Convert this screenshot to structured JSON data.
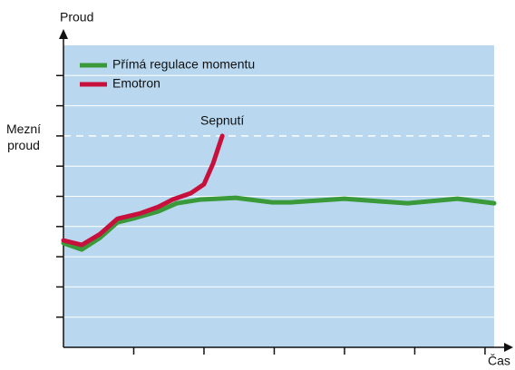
{
  "chart_data": {
    "type": "line",
    "y_label": "Proud",
    "x_label": "Čas",
    "xlim": [
      0,
      6.13
    ],
    "xticks": [
      1,
      2,
      3,
      4,
      5,
      6
    ],
    "ylim": [
      0,
      10
    ],
    "yticks": [
      1,
      2,
      3,
      4,
      5,
      6,
      7,
      8,
      9
    ],
    "grid": true,
    "background": "#b9d8ef",
    "reference_line": {
      "value": 7,
      "label": "Mezní proud",
      "color": "#ffffff"
    },
    "annotation": "Sepnutí",
    "legend": "top-left",
    "series": [
      {
        "name": "Přímá regulace momentu",
        "color": "#3a9a3a",
        "x": [
          0,
          0.26,
          0.52,
          0.77,
          1.03,
          1.35,
          1.61,
          1.94,
          2.45,
          2.97,
          3.23,
          4.0,
          4.52,
          4.9,
          5.61,
          6.13
        ],
        "values": [
          3.45,
          3.24,
          3.63,
          4.14,
          4.29,
          4.5,
          4.77,
          4.89,
          4.95,
          4.8,
          4.8,
          4.92,
          4.83,
          4.77,
          4.92,
          4.77
        ]
      },
      {
        "name": "Emotron",
        "color": "#c8103c",
        "x": [
          0,
          0.26,
          0.52,
          0.77,
          1.1,
          1.35,
          1.55,
          1.81,
          2.0,
          2.13,
          2.26
        ],
        "values": [
          3.54,
          3.39,
          3.75,
          4.26,
          4.44,
          4.65,
          4.89,
          5.1,
          5.4,
          6.09,
          7.0
        ]
      }
    ]
  }
}
